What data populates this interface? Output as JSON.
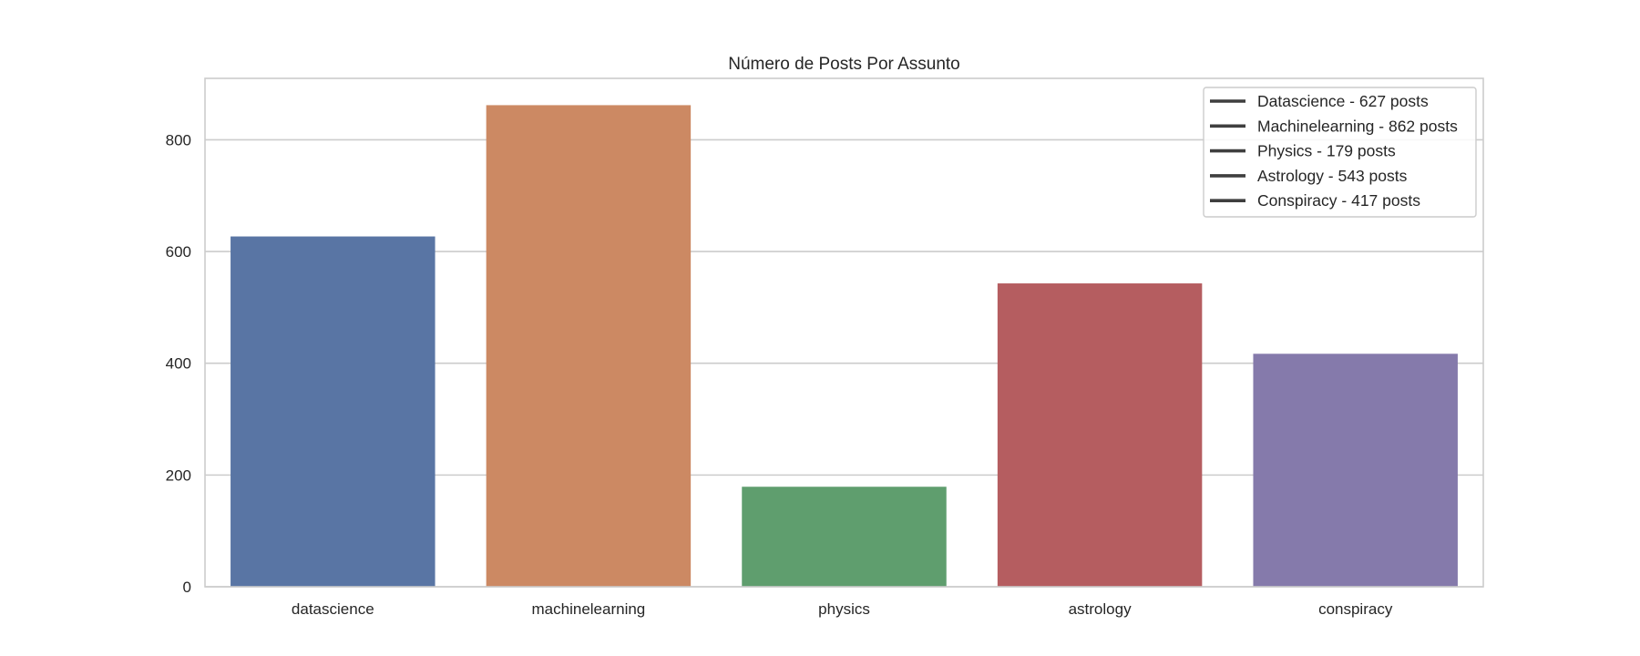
{
  "chart_data": {
    "type": "bar",
    "title": "Número de Posts Por Assunto",
    "xlabel": "",
    "ylabel": "",
    "categories": [
      "datascience",
      "machinelearning",
      "physics",
      "astrology",
      "conspiracy"
    ],
    "values": [
      627,
      862,
      179,
      543,
      417
    ],
    "colors": [
      "#5975a4",
      "#cc8963",
      "#5f9e6e",
      "#b55d60",
      "#857aab"
    ],
    "ylim": [
      0,
      910
    ],
    "yticks": [
      0,
      200,
      400,
      600,
      800
    ],
    "grid": true,
    "legend": {
      "placement": "top-right",
      "entries": [
        "Datascience - 627 posts",
        "Machinelearning - 862 posts",
        "Physics - 179 posts",
        "Astrology - 543 posts",
        "Conspiracy - 417 posts"
      ],
      "line_color": "#3f3f3f"
    }
  }
}
